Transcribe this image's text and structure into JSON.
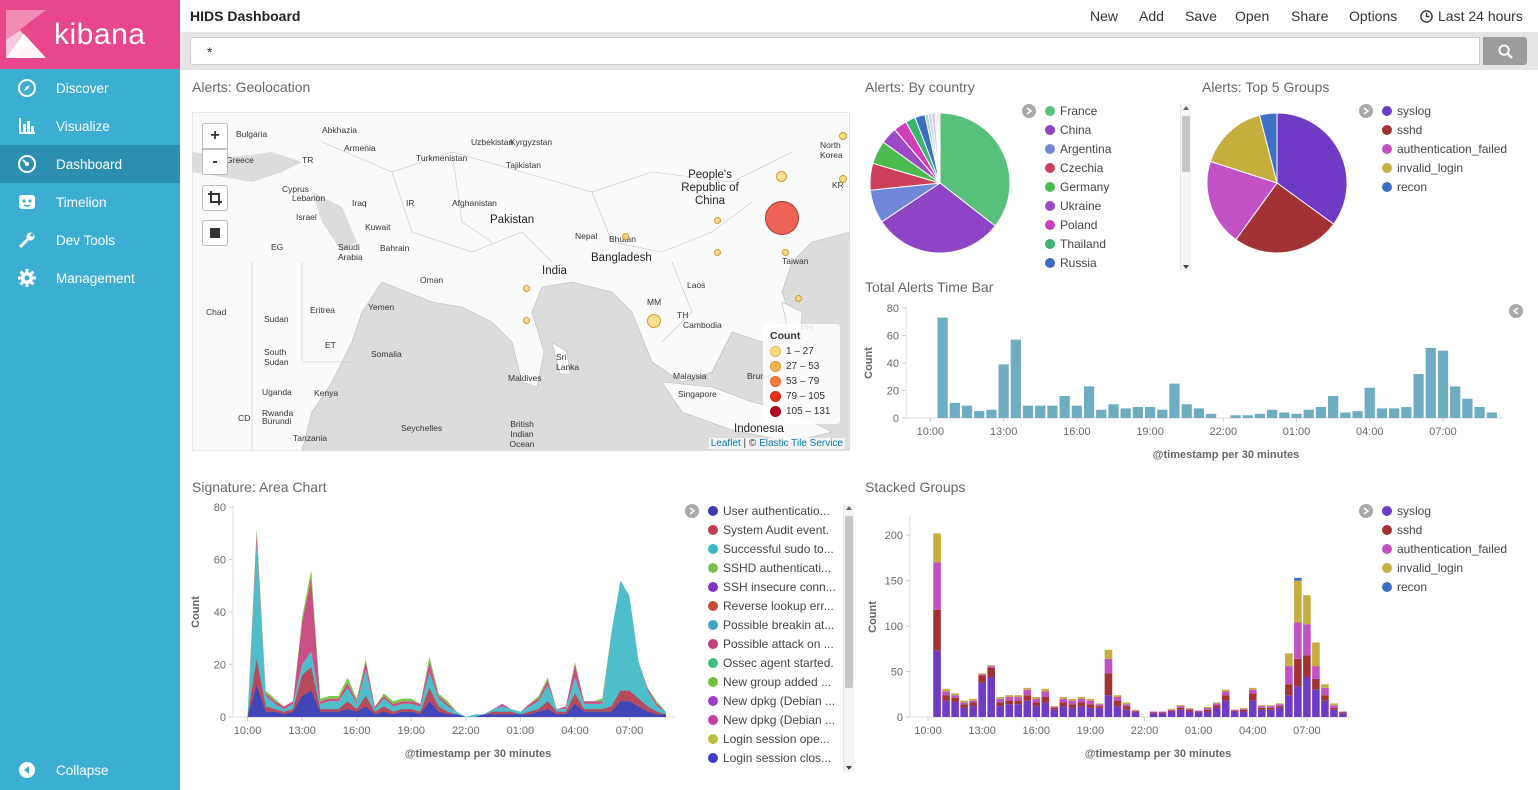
{
  "app": {
    "brand": "kibana",
    "title": "HIDS Dashboard"
  },
  "sidebar": {
    "items": [
      {
        "label": "Discover",
        "icon": "compass-icon"
      },
      {
        "label": "Visualize",
        "icon": "bar-chart-icon"
      },
      {
        "label": "Dashboard",
        "icon": "dashboard-icon",
        "active": true
      },
      {
        "label": "Timelion",
        "icon": "timelion-icon"
      },
      {
        "label": "Dev Tools",
        "icon": "wrench-icon"
      },
      {
        "label": "Management",
        "icon": "gear-icon"
      }
    ],
    "collapse_label": "Collapse"
  },
  "topbar": {
    "new": "New",
    "add": "Add",
    "save": "Save",
    "open": "Open",
    "share": "Share",
    "options": "Options",
    "time_range": "Last 24 hours"
  },
  "search": {
    "query": "*"
  },
  "panels": {
    "geo": {
      "title": "Alerts: Geolocation",
      "legend_title": "Count",
      "legend": [
        {
          "range": "1 – 27",
          "color": "#fdd876"
        },
        {
          "range": "27 – 53",
          "color": "#fdb04b"
        },
        {
          "range": "53 – 79",
          "color": "#fc7a38"
        },
        {
          "range": "79 – 105",
          "color": "#e8301f"
        },
        {
          "range": "105 – 131",
          "color": "#b30d26"
        }
      ],
      "attribution_leaflet": "Leaflet",
      "attribution_sep": " | © ",
      "attribution_tiles": "Elastic Tile Service",
      "zoom_in": "+",
      "zoom_out": "-",
      "labels": [
        "Bulgaria",
        "Abkhazia",
        "Uzbekistan",
        "Kyrgyzstan",
        "Armenia",
        "Turkmenistan",
        "Tajikistan",
        "TR",
        "Cyprus",
        "Lebanon",
        "Israel",
        "Iraq",
        "IR",
        "Afghanistan",
        "Pakistan",
        "Kuwait",
        "Nepal",
        "Bhutan",
        "EG",
        "Saudi Arabia",
        "Bahrain",
        "Bangladesh",
        "Oman",
        "India",
        "Laos",
        "Sudan",
        "Eritrea",
        "Yemen",
        "Chad",
        "MM",
        "TH",
        "Cambodia",
        "ET",
        "Somalia",
        "South Sudan",
        "Sri Lanka",
        "Maldives",
        "Malaysia",
        "Singapore",
        "Brunei",
        "Kenya",
        "Uganda",
        "Rwanda",
        "Burundi",
        "CD",
        "Tanzania",
        "Seychelles",
        "British Indian Ocean",
        "Indonesia",
        "People's Republic of China",
        "North Korea",
        "KR",
        "Taiwan",
        "PH",
        "Greece"
      ]
    },
    "by_country": {
      "title": "Alerts: By country",
      "legend": [
        {
          "label": "France",
          "color": "#57c17b"
        },
        {
          "label": "China",
          "color": "#8e44c5"
        },
        {
          "label": "Argentina",
          "color": "#6f87d8"
        },
        {
          "label": "Czechia",
          "color": "#cc3e5a"
        },
        {
          "label": "Germany",
          "color": "#4cbb4f"
        },
        {
          "label": "Ukraine",
          "color": "#9d48c4"
        },
        {
          "label": "Poland",
          "color": "#cf3fb8"
        },
        {
          "label": "Thailand",
          "color": "#3ab570"
        },
        {
          "label": "Russia",
          "color": "#3e6cc1"
        }
      ],
      "values": [
        92,
        78,
        20,
        16,
        14,
        10,
        8,
        6,
        6,
        2,
        2,
        2,
        1,
        1,
        1
      ]
    },
    "top_groups": {
      "title": "Alerts: Top 5 Groups",
      "legend": [
        {
          "label": "syslog",
          "color": "#6f3bc4"
        },
        {
          "label": "sshd",
          "color": "#a33333"
        },
        {
          "label": "authentication_failed",
          "color": "#c151c4"
        },
        {
          "label": "invalid_login",
          "color": "#c5ae3d"
        },
        {
          "label": "recon",
          "color": "#3d71c8"
        }
      ],
      "values": [
        35,
        25,
        20,
        16,
        4
      ]
    },
    "time_bar": {
      "title": "Total Alerts Time Bar",
      "ylabel": "Count",
      "xlabel": "@timestamp per 30 minutes"
    },
    "area": {
      "title": "Signature: Area Chart",
      "ylabel": "Count",
      "xlabel": "@timestamp per 30 minutes",
      "legend": [
        {
          "label": "User authenticatio...",
          "color": "#3f37b6"
        },
        {
          "label": "System Audit event.",
          "color": "#c33d4f"
        },
        {
          "label": "Successful sudo to...",
          "color": "#3ab7c4"
        },
        {
          "label": "SSHD authenticati...",
          "color": "#7ac24a"
        },
        {
          "label": "SSH insecure conn...",
          "color": "#7e36c4"
        },
        {
          "label": "Reverse lookup err...",
          "color": "#c84a32"
        },
        {
          "label": "Possible breakin at...",
          "color": "#3ea4c6"
        },
        {
          "label": "Possible attack on ...",
          "color": "#c33d77"
        },
        {
          "label": "Ossec agent started.",
          "color": "#3fbf7f"
        },
        {
          "label": "New group added ...",
          "color": "#6cc23a"
        },
        {
          "label": "New dpkg (Debian ...",
          "color": "#a03cc6"
        },
        {
          "label": "New dpkg (Debian ...",
          "color": "#c43ea9"
        },
        {
          "label": "Login session ope...",
          "color": "#b9c03b"
        },
        {
          "label": "Login session clos...",
          "color": "#3b3ec4"
        }
      ]
    },
    "stacked": {
      "title": "Stacked Groups",
      "ylabel": "Count",
      "xlabel": "@timestamp per 30 minutes",
      "legend": [
        {
          "label": "syslog",
          "color": "#6f3bc4"
        },
        {
          "label": "sshd",
          "color": "#a33333"
        },
        {
          "label": "authentication_failed",
          "color": "#c151c4"
        },
        {
          "label": "invalid_login",
          "color": "#c5ae3d"
        },
        {
          "label": "recon",
          "color": "#3d71c8"
        }
      ]
    }
  },
  "chart_data": [
    {
      "type": "pie",
      "title": "Alerts: By country",
      "categories": [
        "France",
        "China",
        "Argentina",
        "Czechia",
        "Germany",
        "Ukraine",
        "Poland",
        "Thailand",
        "Russia"
      ],
      "values": [
        92,
        78,
        20,
        16,
        14,
        10,
        8,
        6,
        6
      ]
    },
    {
      "type": "pie",
      "title": "Alerts: Top 5 Groups",
      "categories": [
        "syslog",
        "sshd",
        "authentication_failed",
        "invalid_login",
        "recon"
      ],
      "values": [
        35,
        25,
        20,
        16,
        4
      ]
    },
    {
      "type": "bar",
      "title": "Total Alerts Time Bar",
      "xlabel": "@timestamp per 30 minutes",
      "ylabel": "Count",
      "ylim": [
        0,
        80
      ],
      "yticks": [
        0,
        20,
        40,
        60,
        80
      ],
      "xticks": [
        "10:00",
        "13:00",
        "16:00",
        "19:00",
        "22:00",
        "01:00",
        "04:00",
        "07:00"
      ],
      "x_start_hour": 9.0,
      "x_end_hour": 33.5,
      "values": [
        0,
        0,
        73,
        11,
        9,
        5,
        6,
        39,
        57,
        9,
        9,
        9,
        16,
        9,
        23,
        6,
        10,
        7,
        8,
        8,
        6,
        25,
        10,
        7,
        3,
        0,
        2,
        2,
        3,
        6,
        4,
        3,
        6,
        8,
        16,
        4,
        5,
        22,
        7,
        7,
        8,
        32,
        51,
        49,
        23,
        14,
        8,
        4
      ],
      "bar_start_slot": 0
    },
    {
      "type": "area",
      "title": "Signature: Area Chart",
      "xlabel": "@timestamp per 30 minutes",
      "ylabel": "Count",
      "ylim": [
        0,
        80
      ],
      "yticks": [
        0,
        20,
        40,
        60,
        80
      ],
      "xticks": [
        "10:00",
        "13:00",
        "16:00",
        "19:00",
        "22:00",
        "01:00",
        "04:00",
        "07:00"
      ],
      "series": [
        {
          "name": "User authenticatio...",
          "values": [
            0,
            0,
            12,
            2,
            2,
            1,
            2,
            8,
            10,
            2,
            2,
            2,
            3,
            2,
            4,
            1,
            2,
            1,
            2,
            2,
            1,
            6,
            2,
            1,
            1,
            0,
            0,
            1,
            1,
            1,
            1,
            1,
            1,
            2,
            3,
            1,
            1,
            5,
            2,
            2,
            2,
            2,
            6,
            6,
            4,
            2,
            1,
            1
          ]
        },
        {
          "name": "System Audit event.",
          "values": [
            0,
            0,
            10,
            2,
            1,
            1,
            1,
            8,
            9,
            1,
            1,
            1,
            3,
            1,
            4,
            1,
            2,
            1,
            1,
            1,
            1,
            5,
            2,
            1,
            0,
            0,
            0,
            0,
            1,
            1,
            1,
            0,
            1,
            1,
            3,
            1,
            1,
            4,
            1,
            1,
            1,
            2,
            4,
            4,
            3,
            2,
            1,
            0
          ]
        },
        {
          "name": "Successful sudo to...",
          "values": [
            0,
            0,
            44,
            4,
            2,
            1,
            2,
            4,
            6,
            2,
            3,
            3,
            5,
            2,
            10,
            1,
            3,
            2,
            2,
            2,
            2,
            6,
            3,
            2,
            1,
            0,
            1,
            0,
            1,
            2,
            1,
            1,
            2,
            3,
            6,
            1,
            1,
            6,
            2,
            2,
            2,
            28,
            42,
            36,
            14,
            6,
            2,
            1
          ]
        },
        {
          "name": "Possible attack on ...",
          "values": [
            0,
            0,
            4,
            1,
            1,
            1,
            1,
            16,
            28,
            1,
            1,
            1,
            2,
            1,
            3,
            1,
            1,
            1,
            1,
            1,
            1,
            4,
            1,
            1,
            0,
            0,
            0,
            0,
            0,
            1,
            0,
            0,
            1,
            1,
            2,
            0,
            1,
            5,
            1,
            1,
            1,
            0,
            0,
            0,
            0,
            1,
            1,
            0
          ]
        },
        {
          "name": "New group added ...",
          "values": [
            0,
            0,
            2,
            1,
            1,
            0,
            0,
            2,
            3,
            1,
            1,
            1,
            2,
            1,
            1,
            0,
            1,
            1,
            1,
            1,
            0,
            2,
            1,
            1,
            0,
            0,
            0,
            0,
            0,
            0,
            0,
            0,
            0,
            1,
            1,
            0,
            0,
            1,
            0,
            0,
            1,
            0,
            0,
            0,
            0,
            0,
            1,
            0
          ]
        }
      ]
    },
    {
      "type": "bar",
      "title": "Stacked Groups",
      "xlabel": "@timestamp per 30 minutes",
      "ylabel": "Count",
      "ylim": [
        0,
        220
      ],
      "yticks": [
        0,
        50,
        100,
        150,
        200
      ],
      "xticks": [
        "10:00",
        "13:00",
        "16:00",
        "19:00",
        "22:00",
        "01:00",
        "04:00",
        "07:00"
      ],
      "stacked": true,
      "series": [
        {
          "name": "syslog",
          "values": [
            0,
            0,
            73,
            18,
            17,
            10,
            12,
            38,
            44,
            12,
            14,
            14,
            18,
            12,
            16,
            8,
            12,
            10,
            12,
            10,
            10,
            24,
            12,
            8,
            5,
            0,
            4,
            4,
            6,
            8,
            6,
            5,
            6,
            10,
            18,
            6,
            6,
            18,
            8,
            8,
            10,
            24,
            34,
            44,
            30,
            18,
            8,
            4
          ]
        },
        {
          "name": "sshd",
          "values": [
            0,
            0,
            45,
            6,
            4,
            4,
            4,
            8,
            10,
            4,
            4,
            4,
            6,
            4,
            6,
            2,
            4,
            4,
            4,
            4,
            2,
            24,
            6,
            4,
            1,
            0,
            1,
            1,
            1,
            2,
            2,
            1,
            2,
            3,
            6,
            1,
            2,
            8,
            2,
            2,
            2,
            12,
            30,
            24,
            12,
            6,
            2,
            1
          ]
        },
        {
          "name": "authentication_failed",
          "values": [
            0,
            0,
            52,
            4,
            3,
            2,
            2,
            1,
            2,
            4,
            4,
            4,
            6,
            4,
            6,
            1,
            4,
            4,
            4,
            4,
            2,
            16,
            4,
            2,
            1,
            0,
            1,
            1,
            1,
            2,
            1,
            1,
            2,
            2,
            4,
            1,
            1,
            4,
            2,
            2,
            2,
            20,
            40,
            34,
            14,
            8,
            3,
            1
          ]
        },
        {
          "name": "invalid_login",
          "values": [
            0,
            0,
            32,
            3,
            2,
            2,
            2,
            1,
            1,
            2,
            2,
            2,
            2,
            2,
            3,
            1,
            2,
            2,
            2,
            2,
            1,
            10,
            2,
            2,
            1,
            0,
            0,
            0,
            1,
            1,
            1,
            0,
            1,
            1,
            2,
            0,
            1,
            2,
            1,
            1,
            1,
            14,
            46,
            32,
            26,
            4,
            2,
            0
          ]
        },
        {
          "name": "recon",
          "values": [
            0,
            0,
            0,
            0,
            0,
            0,
            0,
            0,
            0,
            0,
            0,
            0,
            0,
            0,
            0,
            0,
            0,
            0,
            0,
            0,
            0,
            0,
            0,
            0,
            0,
            0,
            0,
            0,
            0,
            0,
            0,
            0,
            0,
            0,
            0,
            0,
            0,
            0,
            0,
            0,
            0,
            0,
            3,
            0,
            0,
            0,
            0,
            0
          ]
        }
      ]
    }
  ]
}
